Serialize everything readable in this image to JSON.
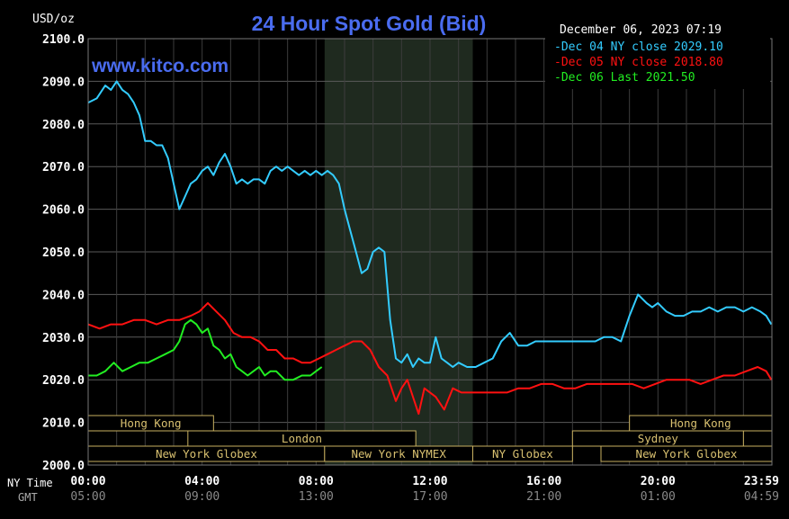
{
  "chart_data": {
    "type": "line",
    "title": "24 Hour Spot Gold (Bid)",
    "watermark": "www.kitco.com",
    "ylabel": "USD/oz",
    "timestamp": "December 06, 2023 07:19",
    "ylim": [
      2000,
      2100
    ],
    "xlim_hours": [
      0,
      24
    ],
    "y_ticks": [
      "2100.0",
      "2090.0",
      "2080.0",
      "2070.0",
      "2060.0",
      "2050.0",
      "2040.0",
      "2030.0",
      "2020.0",
      "2010.0",
      "2000.0"
    ],
    "x_ticks_ny": [
      "00:00",
      "04:00",
      "08:00",
      "12:00",
      "16:00",
      "20:00",
      "23:59"
    ],
    "x_ticks_gmt": [
      "05:00",
      "09:00",
      "13:00",
      "17:00",
      "21:00",
      "01:00",
      "04:59"
    ],
    "x_label_ny": "NY Time",
    "x_label_gmt": "GMT",
    "shaded_region_hours": [
      8.3,
      13.5
    ],
    "legend": [
      {
        "label": "-Dec 04 NY close 2029.10",
        "color": "#33ccff"
      },
      {
        "label": "-Dec 05 NY close 2018.80",
        "color": "#ff1111"
      },
      {
        "label": "-Dec 06 Last 2021.50",
        "color": "#22ee22"
      }
    ],
    "series": [
      {
        "name": "Dec 04",
        "color": "#33ccff",
        "x": [
          0,
          0.3,
          0.6,
          0.8,
          1.0,
          1.2,
          1.4,
          1.6,
          1.8,
          2.0,
          2.2,
          2.4,
          2.6,
          2.8,
          3.0,
          3.2,
          3.4,
          3.6,
          3.8,
          4.0,
          4.2,
          4.4,
          4.6,
          4.8,
          5.0,
          5.2,
          5.4,
          5.6,
          5.8,
          6.0,
          6.2,
          6.4,
          6.6,
          6.8,
          7.0,
          7.2,
          7.4,
          7.6,
          7.8,
          8.0,
          8.2,
          8.4,
          8.6,
          8.8,
          9.0,
          9.2,
          9.4,
          9.6,
          9.8,
          10.0,
          10.2,
          10.4,
          10.6,
          10.8,
          11.0,
          11.2,
          11.4,
          11.6,
          11.8,
          12.0,
          12.2,
          12.4,
          12.6,
          12.8,
          13.0,
          13.3,
          13.6,
          13.9,
          14.2,
          14.5,
          14.8,
          15.1,
          15.4,
          15.7,
          16.0,
          16.3,
          16.6,
          16.9,
          17.2,
          17.5,
          17.8,
          18.1,
          18.4,
          18.7,
          19.0,
          19.3,
          19.6,
          19.8,
          20.0,
          20.3,
          20.6,
          20.9,
          21.2,
          21.5,
          21.8,
          22.1,
          22.4,
          22.7,
          23.0,
          23.3,
          23.6,
          23.8,
          23.98
        ],
        "values": [
          2085,
          2086,
          2089,
          2088,
          2090,
          2088,
          2087,
          2085,
          2082,
          2076,
          2076,
          2075,
          2075,
          2072,
          2066,
          2060,
          2063,
          2066,
          2067,
          2069,
          2070,
          2068,
          2071,
          2073,
          2070,
          2066,
          2067,
          2066,
          2067,
          2067,
          2066,
          2069,
          2070,
          2069,
          2070,
          2069,
          2068,
          2069,
          2068,
          2069,
          2068,
          2069,
          2068,
          2066,
          2060,
          2055,
          2050,
          2045,
          2046,
          2050,
          2051,
          2050,
          2034,
          2025,
          2024,
          2026,
          2023,
          2025,
          2024,
          2024,
          2030,
          2025,
          2024,
          2023,
          2024,
          2023,
          2023,
          2024,
          2025,
          2029,
          2031,
          2028,
          2028,
          2029,
          2029,
          2029,
          2029,
          2029,
          2029,
          2029,
          2029,
          2030,
          2030,
          2029,
          2035,
          2040,
          2038,
          2037,
          2038,
          2036,
          2035,
          2035,
          2036,
          2036,
          2037,
          2036,
          2037,
          2037,
          2036,
          2037,
          2036,
          2035,
          2033
        ]
      },
      {
        "name": "Dec 05",
        "color": "#ff1111",
        "x": [
          0,
          0.4,
          0.8,
          1.2,
          1.6,
          2.0,
          2.4,
          2.8,
          3.2,
          3.6,
          3.9,
          4.2,
          4.5,
          4.8,
          5.1,
          5.4,
          5.7,
          6.0,
          6.3,
          6.6,
          6.9,
          7.2,
          7.5,
          7.8,
          8.1,
          8.4,
          8.7,
          9.0,
          9.3,
          9.6,
          9.9,
          10.2,
          10.5,
          10.8,
          11.0,
          11.2,
          11.4,
          11.6,
          11.8,
          12.0,
          12.2,
          12.5,
          12.8,
          13.1,
          13.5,
          13.9,
          14.3,
          14.7,
          15.1,
          15.5,
          15.9,
          16.3,
          16.7,
          17.1,
          17.5,
          17.9,
          18.3,
          18.7,
          19.1,
          19.5,
          19.9,
          20.3,
          20.7,
          21.1,
          21.5,
          21.9,
          22.3,
          22.7,
          23.1,
          23.5,
          23.8,
          23.98
        ],
        "values": [
          2033,
          2032,
          2033,
          2033,
          2034,
          2034,
          2033,
          2034,
          2034,
          2035,
          2036,
          2038,
          2036,
          2034,
          2031,
          2030,
          2030,
          2029,
          2027,
          2027,
          2025,
          2025,
          2024,
          2024,
          2025,
          2026,
          2027,
          2028,
          2029,
          2029,
          2027,
          2023,
          2021,
          2015,
          2018,
          2020,
          2016,
          2012,
          2018,
          2017,
          2016,
          2013,
          2018,
          2017,
          2017,
          2017,
          2017,
          2017,
          2018,
          2018,
          2019,
          2019,
          2018,
          2018,
          2019,
          2019,
          2019,
          2019,
          2019,
          2018,
          2019,
          2020,
          2020,
          2020,
          2019,
          2020,
          2021,
          2021,
          2022,
          2023,
          2022,
          2020
        ]
      },
      {
        "name": "Dec 06",
        "color": "#22ee22",
        "x": [
          0,
          0.3,
          0.6,
          0.9,
          1.2,
          1.5,
          1.8,
          2.1,
          2.4,
          2.7,
          3.0,
          3.2,
          3.4,
          3.6,
          3.8,
          4.0,
          4.2,
          4.4,
          4.6,
          4.8,
          5.0,
          5.2,
          5.4,
          5.6,
          5.8,
          6.0,
          6.2,
          6.4,
          6.6,
          6.9,
          7.2,
          7.5,
          7.8,
          8.0,
          8.2
        ],
        "values": [
          2021,
          2021,
          2022,
          2024,
          2022,
          2023,
          2024,
          2024,
          2025,
          2026,
          2027,
          2029,
          2033,
          2034,
          2033,
          2031,
          2032,
          2028,
          2027,
          2025,
          2026,
          2023,
          2022,
          2021,
          2022,
          2023,
          2021,
          2022,
          2022,
          2020,
          2020,
          2021,
          2021,
          2022,
          2023
        ]
      }
    ],
    "sessions": [
      {
        "label": "Hong Kong",
        "start": 0,
        "end": 4.4,
        "row": 0
      },
      {
        "label": "London",
        "start": 3.5,
        "end": 11.5,
        "row": 1
      },
      {
        "label": "New York Globex",
        "start": 0,
        "end": 8.3,
        "row": 2
      },
      {
        "label": "New York NYMEX",
        "start": 8.3,
        "end": 13.5,
        "row": 2
      },
      {
        "label": "NY Globex",
        "start": 13.5,
        "end": 17.0,
        "row": 2
      },
      {
        "label": "Hong Kong",
        "start": 19.0,
        "end": 24.0,
        "row": 0
      },
      {
        "label": "Sydney",
        "start": 17.0,
        "end": 23.0,
        "row": 1
      },
      {
        "label": "New York Globex",
        "start": 18.0,
        "end": 24.0,
        "row": 2
      }
    ]
  }
}
